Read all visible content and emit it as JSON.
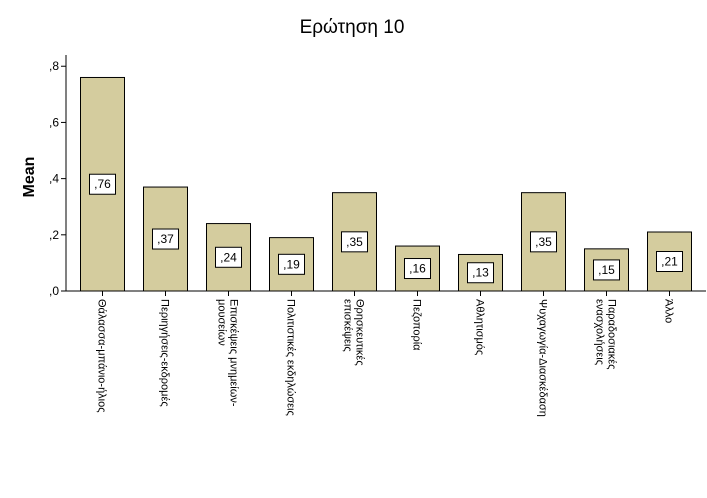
{
  "chart_data": {
    "type": "bar",
    "title": "Ερώτηση 10",
    "ylabel": "Mean",
    "xlabel": "",
    "ylim": [
      0,
      0.84
    ],
    "yticks": [
      0.0,
      0.2,
      0.4,
      0.6,
      0.8
    ],
    "ytick_labels": [
      ",0",
      ",2",
      ",4",
      ",6",
      ",8"
    ],
    "categories": [
      [
        "Θάλασσα-μπάνιο-ήλιος"
      ],
      [
        "Περιηγήσεις-εκδρομές"
      ],
      [
        "Επισκέψεις μνημείων-",
        "μουσείων"
      ],
      [
        "Πολιτιστικές εκδηλώσεις"
      ],
      [
        "Θρησκευτικές",
        "επισκέψεις"
      ],
      [
        "Πεζοπορία"
      ],
      [
        "Αθλητισμός"
      ],
      [
        "Ψυχαγωγία-Διασκέδαση"
      ],
      [
        "Παραδοσιακές",
        "ενασχολήσεις"
      ],
      [
        "Άλλο"
      ]
    ],
    "values": [
      0.76,
      0.37,
      0.24,
      0.19,
      0.35,
      0.16,
      0.13,
      0.35,
      0.15,
      0.21
    ],
    "data_labels": [
      ",76",
      ",37",
      ",24",
      ",19",
      ",35",
      ",16",
      ",13",
      ",35",
      ",15",
      ",21"
    ],
    "colors": {
      "bar_fill": "#d4cc9e",
      "bar_stroke": "#000000",
      "axis": "#000000"
    },
    "grid": false,
    "legend": "none"
  }
}
